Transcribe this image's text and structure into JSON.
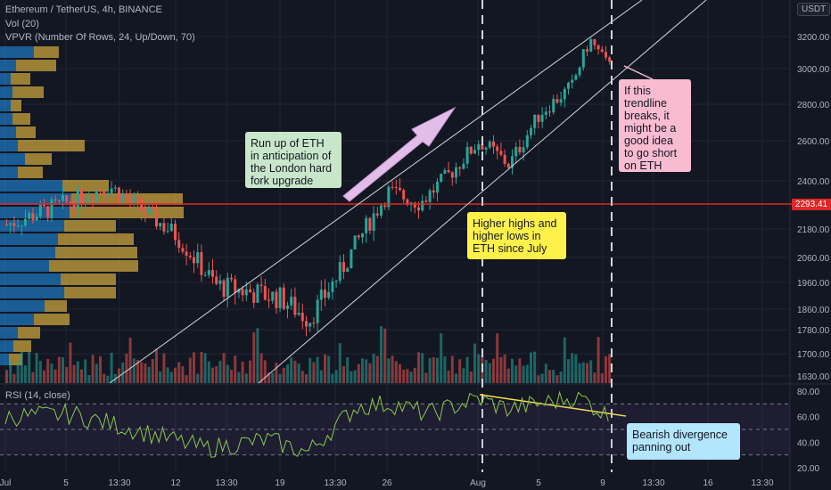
{
  "header": {
    "symbol_line": "Ethereum / TetherUS, 4h, BINANCE",
    "vol_line": "Vol (20)",
    "vpvr_line": "VPVR (Number Of Rows, 24, Up/Down, 70)",
    "currency_badge": "USDT",
    "rsi_label": "RSI (14, close)"
  },
  "colors": {
    "background": "#131722",
    "up_candle": "#26a69a",
    "down_candle": "#ef5350",
    "horizontal_line": "#e02626",
    "rsi_line": "#8cc84b",
    "divergence_line": "#f5e04a",
    "vpvr_up": "#2196f3",
    "vpvr_down": "#f5c542"
  },
  "annotations": {
    "london_fork": "Run up of ETH\nin anticipation of\nthe London hard\nfork upgrade",
    "higher_highs": "Higher highs and\nhigher lows in\nETH since July",
    "trendline_break": "If this\ntrendline\nbreaks, it\nmight be a\ngood idea\nto go short\non ETH",
    "bearish_divergence": "Bearish divergence\npanning out"
  },
  "chart_data": [
    {
      "type": "candlestick",
      "title": "Ethereum / TetherUS, 4h, BINANCE",
      "price_axis_ticks": [
        3200,
        3000,
        2800,
        2600,
        2400,
        2180,
        2060,
        1960,
        1860,
        1780,
        1700,
        1630
      ],
      "time_axis_ticks": [
        "Jul",
        "5",
        "13:30",
        "12",
        "13:30",
        "19",
        "13:30",
        "26",
        "Aug",
        "5",
        "9",
        "13:30",
        "16",
        "13:30"
      ],
      "current_price_tag": "2293.41",
      "horizontal_level": 2293.41,
      "price_path_keypoints": [
        {
          "x": "Jul",
          "close": 2200
        },
        {
          "x": "5",
          "close": 2300
        },
        {
          "x": "12",
          "close": 2100
        },
        {
          "x": "19",
          "close": 1850
        },
        {
          "x": "26",
          "close": 2350
        },
        {
          "x": "Aug",
          "close": 2650
        },
        {
          "x": "5",
          "close": 2800
        },
        {
          "x": "9",
          "close": 3050
        }
      ]
    },
    {
      "type": "line",
      "title": "RSI (14, close)",
      "ylim": [
        20,
        80
      ],
      "y_ticks": [
        "80.00",
        "60.00",
        "40.00",
        "20.00"
      ],
      "reference_lines": [
        70,
        50,
        30
      ]
    }
  ]
}
